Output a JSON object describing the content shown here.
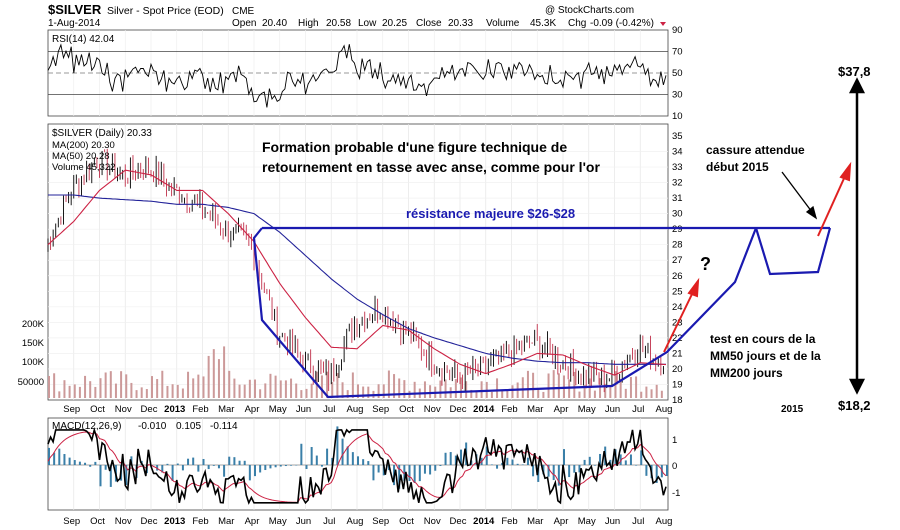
{
  "header": {
    "symbol": "$SILVER",
    "description": "Silver - Spot Price (EOD)",
    "exchange": "CME",
    "date": "1-Aug-2014",
    "watermark": "@ StockCharts.com",
    "open_label": "Open",
    "open": "20.40",
    "high_label": "High",
    "high": "20.58",
    "low_label": "Low",
    "low": "20.25",
    "close_label": "Close",
    "close": "20.33",
    "volume_label": "Volume",
    "volume": "45.3K",
    "chg_label": "Chg",
    "chg": "-0.09 (-0.42%)"
  },
  "rsi": {
    "label": "RSI(14) 42.04",
    "ticks": [
      "90",
      "70",
      "50",
      "30",
      "10"
    ]
  },
  "price_legend": {
    "title": "$SILVER (Daily) 20.33",
    "ma200": "MA(200) 20.30",
    "ma50": "MA(50) 20.28",
    "volume": "Volume 45,322"
  },
  "volume_ticks": [
    "200K",
    "150K",
    "100K",
    "50000"
  ],
  "macd": {
    "label_prefix": "MACD(12,26,9)",
    "v1": "-0.010",
    "v2": "0.105",
    "v3": "-0.114",
    "ticks": [
      "1",
      "0",
      "-1"
    ]
  },
  "annotations": {
    "title_line1": "Formation probable d'une figure technique de",
    "title_line2": "retournement en tasse avec anse, comme pour l'or",
    "resistance": "résistance majeure $26-$28",
    "question": "?",
    "breakout_line1": "cassure attendue",
    "breakout_line2": "début 2015",
    "test_line1": "test en cours de la",
    "test_line2": "MM50 jours et de la",
    "test_line3": "MM200 jours",
    "target_high": "$37,8",
    "target_low": "$18,2"
  },
  "x_axis": {
    "labels": [
      "Sep",
      "Oct",
      "Nov",
      "Dec",
      "2013",
      "Feb",
      "Mar",
      "Apr",
      "May",
      "Jun",
      "Jul",
      "Aug",
      "Sep",
      "Oct",
      "Nov",
      "Dec",
      "2014",
      "Feb",
      "Mar",
      "Apr",
      "May",
      "Jun",
      "Jul",
      "Aug"
    ],
    "future_label": "2015"
  },
  "colors": {
    "price": "#000000",
    "ma50": "#cc2244",
    "ma200": "#222299",
    "annotation_blue": "#1a1ab0",
    "arrow_red": "#e02020",
    "volume": "#cc9999",
    "macd_hist": "#3a7fa8"
  },
  "chart_data": {
    "type": "line",
    "title": "$SILVER Silver - Spot Price (EOD)",
    "x": [
      "2012-08",
      "2012-09",
      "2012-10",
      "2012-11",
      "2012-12",
      "2013-01",
      "2013-02",
      "2013-03",
      "2013-04",
      "2013-05",
      "2013-06",
      "2013-07",
      "2013-08",
      "2013-09",
      "2013-10",
      "2013-11",
      "2013-12",
      "2014-01",
      "2014-02",
      "2014-03",
      "2014-04",
      "2014-05",
      "2014-06",
      "2014-07",
      "2014-08"
    ],
    "ylim": [
      18,
      35
    ],
    "series": [
      {
        "name": "$SILVER (Daily)",
        "values": [
          27.8,
          31.5,
          33.5,
          32.5,
          33.0,
          31.5,
          30.5,
          29.0,
          28.0,
          22.5,
          20.5,
          19.5,
          23.0,
          24.0,
          22.5,
          20.5,
          19.5,
          20.0,
          21.0,
          21.8,
          20.5,
          19.5,
          19.5,
          21.5,
          20.33
        ]
      },
      {
        "name": "MA(200)",
        "values": [
          31.2,
          31.2,
          31.0,
          30.9,
          30.8,
          30.6,
          30.6,
          30.4,
          30.0,
          28.8,
          27.3,
          25.8,
          24.5,
          23.5,
          22.6,
          22.0,
          21.5,
          21.0,
          20.7,
          20.5,
          20.4,
          20.4,
          20.3,
          20.3,
          20.3
        ]
      },
      {
        "name": "MA(50)",
        "values": [
          28.0,
          29.5,
          31.5,
          32.8,
          32.5,
          31.5,
          31.5,
          30.0,
          28.2,
          25.5,
          23.3,
          21.4,
          21.3,
          22.8,
          22.5,
          21.3,
          20.3,
          19.7,
          20.3,
          21.0,
          20.9,
          20.2,
          19.6,
          20.4,
          20.28
        ]
      }
    ],
    "rsi": {
      "name": "RSI(14)",
      "value": 42.04,
      "ylim": [
        10,
        90
      ]
    },
    "macd": {
      "name": "MACD(12,26,9)",
      "macd": -0.01,
      "signal": 0.105,
      "histogram": -0.114
    },
    "projection": {
      "resistance_range": [
        26,
        28
      ],
      "target_high": 37.8,
      "target_low": 18.2,
      "breakout_expected": "début 2015"
    }
  }
}
